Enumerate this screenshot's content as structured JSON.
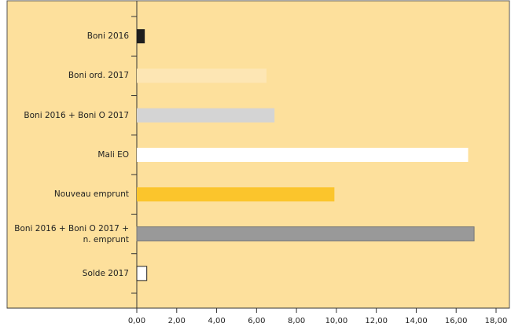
{
  "chart_data": {
    "type": "bar",
    "orientation": "horizontal",
    "categories": [
      "Boni 2016",
      "Boni ord. 2017",
      "Boni 2016 + Boni O 2017",
      "Mali EO",
      "Nouveau emprunt",
      "Boni 2016 + Boni O 2017 +\nn. emprunt",
      "Solde 2017"
    ],
    "values": [
      0.4,
      6.5,
      6.9,
      16.6,
      9.9,
      16.9,
      0.5
    ],
    "colors": [
      "#1e1e1e",
      "#fde6b4",
      "#d4d4d4",
      "#ffffff",
      "#fbc52c",
      "#999999",
      "#ffffff"
    ],
    "xlim": [
      0,
      18
    ],
    "xticks": [
      {
        "value": 0,
        "label": "0,00"
      },
      {
        "value": 2,
        "label": "2,00"
      },
      {
        "value": 4,
        "label": "4,00"
      },
      {
        "value": 6,
        "label": "6,00"
      },
      {
        "value": 8,
        "label": "8,00"
      },
      {
        "value": 10,
        "label": "10,00"
      },
      {
        "value": 12,
        "label": "12,00"
      },
      {
        "value": 14,
        "label": "14,00"
      },
      {
        "value": 16,
        "label": "16,00"
      },
      {
        "value": 18,
        "label": "18,00"
      }
    ],
    "grid": false
  }
}
